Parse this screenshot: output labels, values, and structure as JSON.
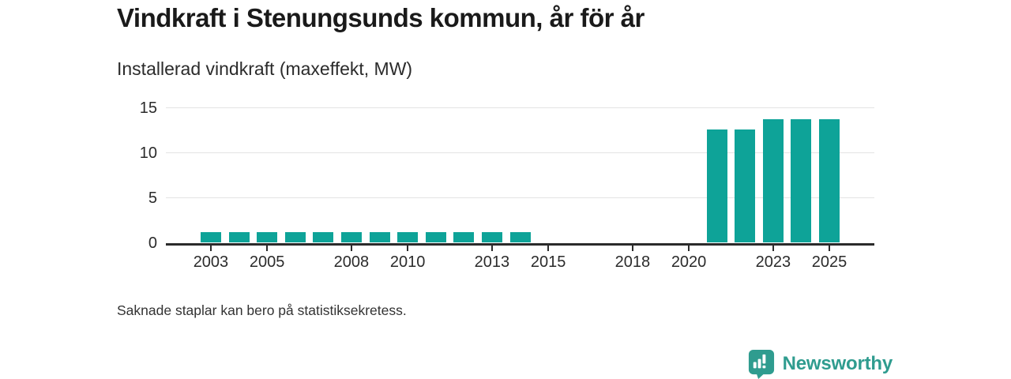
{
  "header": {
    "title": "Vindkraft i Stenungsunds kommun, år för år",
    "subtitle": "Installerad vindkraft (maxeffekt, MW)"
  },
  "footer": {
    "note": "Saknade staplar kan bero på statistiksekretess.",
    "brand": "Newsworthy"
  },
  "colors": {
    "bar": "#0ea398",
    "brand": "#2f9c8f",
    "axis": "#2b2b2b",
    "grid": "#e3e3e3",
    "text": "#2b2b2b"
  },
  "chart_data": {
    "type": "bar",
    "title": "Vindkraft i Stenungsunds kommun, år för år",
    "subtitle": "Installerad vindkraft (maxeffekt, MW)",
    "xlabel": "",
    "ylabel": "MW",
    "x": [
      2003,
      2004,
      2005,
      2006,
      2007,
      2008,
      2009,
      2010,
      2011,
      2012,
      2013,
      2014,
      2015,
      2016,
      2017,
      2018,
      2019,
      2020,
      2021,
      2022,
      2023,
      2024,
      2025
    ],
    "values": [
      1.2,
      1.2,
      1.2,
      1.2,
      1.2,
      1.2,
      1.2,
      1.2,
      1.2,
      1.2,
      1.2,
      1.2,
      null,
      null,
      null,
      null,
      null,
      null,
      12.6,
      12.6,
      13.7,
      13.7,
      13.7
    ],
    "missing_years_note": "Saknade staplar kan bero på statistiksekretess.",
    "ylim": [
      0,
      15
    ],
    "yticks": [
      0,
      5,
      10,
      15
    ],
    "xticks": [
      2003,
      2005,
      2008,
      2010,
      2013,
      2015,
      2018,
      2020,
      2023,
      2025
    ],
    "x_domain": [
      2001.4,
      2026.6
    ],
    "grid": "horizontal",
    "legend": "none",
    "bar_color": "#0ea398"
  }
}
